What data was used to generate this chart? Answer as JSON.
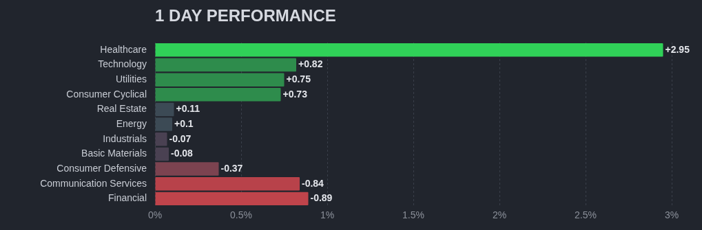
{
  "chart_data": {
    "type": "bar",
    "orientation": "horizontal",
    "title": "1 DAY PERFORMANCE",
    "categories": [
      "Healthcare",
      "Technology",
      "Utilities",
      "Consumer Cyclical",
      "Real Estate",
      "Energy",
      "Industrials",
      "Basic Materials",
      "Consumer Defensive",
      "Communication Services",
      "Financial"
    ],
    "values": [
      2.95,
      0.82,
      0.75,
      0.73,
      0.11,
      0.1,
      -0.07,
      -0.08,
      -0.37,
      -0.84,
      -0.89
    ],
    "base": [
      0,
      0,
      0,
      0,
      0,
      0,
      0.07,
      0.08,
      0.37,
      0.84,
      0.89
    ],
    "colors": [
      "#30d158",
      "#2e8c4c",
      "#2e8c4c",
      "#2e8c4c",
      "#3c4a55",
      "#3c4a55",
      "#4a4152",
      "#4a4152",
      "#7c4350",
      "#b8424a",
      "#c0444b"
    ],
    "value_labels": [
      "+2.95",
      "+0.82",
      "+0.75",
      "+0.73",
      "+0.11",
      "+0.1",
      "-0.07",
      "-0.08",
      "-0.37",
      "-0.84",
      "-0.89"
    ],
    "xlim": [
      0,
      3
    ],
    "xticks": [
      {
        "value": 0,
        "label": "0%"
      },
      {
        "value": 0.5,
        "label": "0.5%"
      },
      {
        "value": 1,
        "label": "1%"
      },
      {
        "value": 1.5,
        "label": "1.5%"
      },
      {
        "value": 2,
        "label": "2%"
      },
      {
        "value": 2.5,
        "label": "2.5%"
      },
      {
        "value": 3,
        "label": "3%"
      }
    ],
    "grid": "x",
    "legend": false
  }
}
